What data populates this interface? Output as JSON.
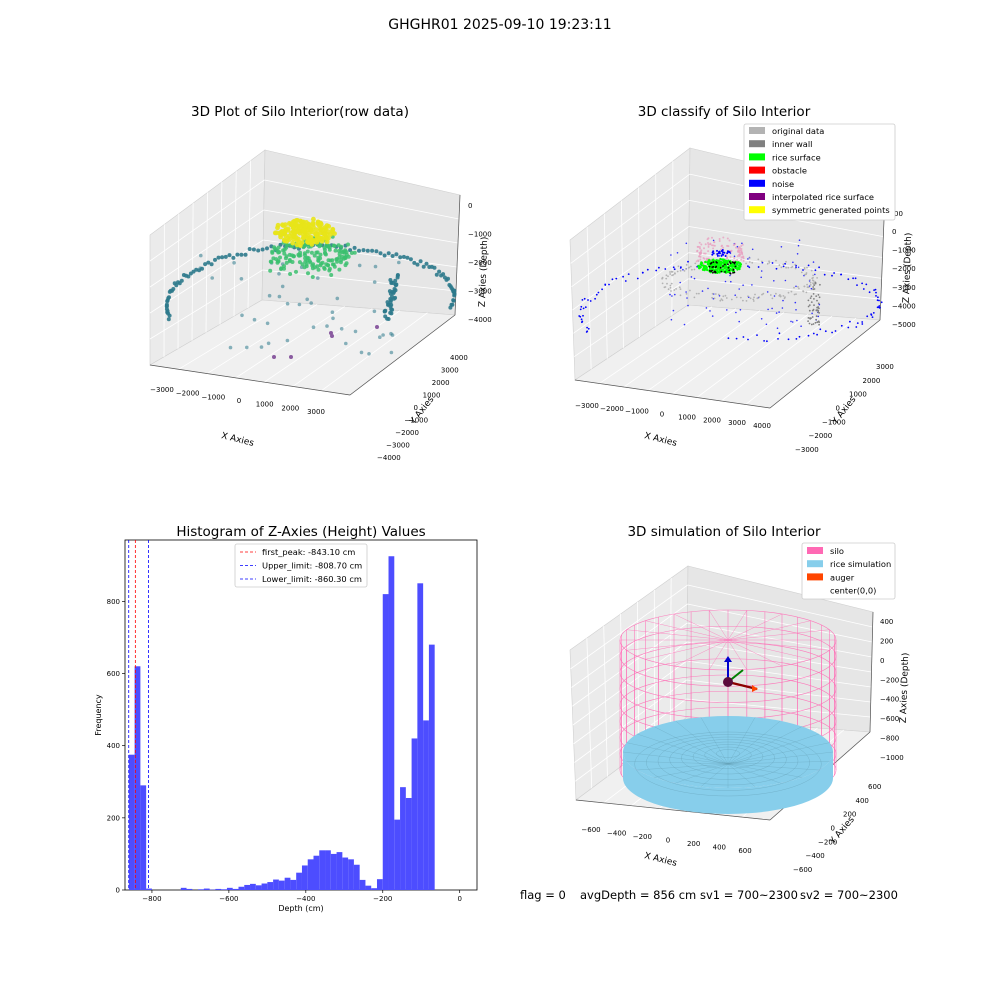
{
  "figure": {
    "title": "GHGHR01 2025-09-10 19:23:11",
    "status": {
      "flag": "flag = 0",
      "avg_depth": "avgDepth = 856 cm",
      "sv1": "sv1 = 700~2300",
      "sv2": "sv2 = 700~2300"
    }
  },
  "chart_data": [
    {
      "type": "scatter",
      "id": "raw3d",
      "title": "3D Plot of Silo Interior(row data)",
      "xlabel": "X Axies",
      "ylabel": "Y Axies",
      "zlabel": "Z Axies (Depth)",
      "x_ticks": [
        "−3000",
        "−2000",
        "−1000",
        "0",
        "1000",
        "2000",
        "3000"
      ],
      "y_ticks": [
        "−4000",
        "−3000",
        "−2000",
        "−1000",
        "0",
        "1000",
        "2000",
        "3000",
        "4000"
      ],
      "z_ticks": [
        "−4000",
        "−3000",
        "−2000",
        "−1000",
        "0"
      ],
      "xlim": [
        -3500,
        3500
      ],
      "ylim": [
        -4000,
        4000
      ],
      "zlim": [
        -4500,
        0
      ],
      "colors": {
        "top": "#e8e418",
        "mid": "#3bbf6e",
        "low": "#2d7a8c",
        "bottom": "#27527a",
        "odd": "#8a5ba0"
      }
    },
    {
      "type": "scatter",
      "id": "classify3d",
      "title": "3D classify of Silo Interior",
      "xlabel": "X Axies",
      "ylabel": "Y Axies",
      "zlabel": "Z Axies (Depth)",
      "x_ticks": [
        "−3000",
        "−2000",
        "−1000",
        "0",
        "1000",
        "2000",
        "3000",
        "4000"
      ],
      "y_ticks": [
        "−3000",
        "−2000",
        "−1000",
        "0",
        "1000",
        "2000",
        "3000"
      ],
      "z_ticks": [
        "−5000",
        "−4000",
        "−3000",
        "−2000",
        "−1000",
        "0",
        "1000"
      ],
      "z_tick_partial": "00",
      "legend_position": "upper-right",
      "legend": [
        {
          "label": "original data",
          "color": "#b3b3b3"
        },
        {
          "label": "inner wall",
          "color": "#808080"
        },
        {
          "label": "rice surface",
          "color": "#00ff00"
        },
        {
          "label": "obstacle",
          "color": "#ff0000"
        },
        {
          "label": "noise",
          "color": "#0000ff"
        },
        {
          "label": "interpolated rice surface",
          "color": "#800080"
        },
        {
          "label": "symmetric generated points",
          "color": "#ffff00"
        }
      ]
    },
    {
      "type": "bar",
      "id": "histogram",
      "title": "Histogram of Z-Axies (Height) Values",
      "xlabel": "Depth (cm)",
      "ylabel": "Frequency",
      "xlim": [
        -870,
        45
      ],
      "ylim": [
        0,
        970
      ],
      "x_ticks": [
        -800,
        -600,
        -400,
        -200,
        0
      ],
      "y_ticks": [
        0,
        200,
        400,
        600,
        800
      ],
      "bar_color": "#4d4dff",
      "bin_width": 15,
      "bins": [
        [
          -860,
          375
        ],
        [
          -845,
          620
        ],
        [
          -830,
          290
        ],
        [
          -815,
          4
        ],
        [
          -800,
          0
        ],
        [
          -785,
          0
        ],
        [
          -770,
          0
        ],
        [
          -755,
          0
        ],
        [
          -740,
          0
        ],
        [
          -725,
          6
        ],
        [
          -710,
          3
        ],
        [
          -695,
          0
        ],
        [
          -680,
          2
        ],
        [
          -665,
          4
        ],
        [
          -650,
          1
        ],
        [
          -635,
          3
        ],
        [
          -620,
          2
        ],
        [
          -605,
          6
        ],
        [
          -590,
          3
        ],
        [
          -575,
          9
        ],
        [
          -560,
          14
        ],
        [
          -545,
          17
        ],
        [
          -530,
          13
        ],
        [
          -515,
          18
        ],
        [
          -500,
          22
        ],
        [
          -485,
          29
        ],
        [
          -470,
          26
        ],
        [
          -455,
          34
        ],
        [
          -440,
          28
        ],
        [
          -425,
          48
        ],
        [
          -410,
          68
        ],
        [
          -395,
          85
        ],
        [
          -380,
          95
        ],
        [
          -365,
          110
        ],
        [
          -350,
          110
        ],
        [
          -335,
          100
        ],
        [
          -320,
          105
        ],
        [
          -305,
          90
        ],
        [
          -290,
          85
        ],
        [
          -275,
          70
        ],
        [
          -260,
          28
        ],
        [
          -245,
          12
        ],
        [
          -230,
          5
        ],
        [
          -215,
          30
        ],
        [
          -200,
          820
        ],
        [
          -185,
          925
        ],
        [
          -170,
          195
        ],
        [
          -155,
          285
        ],
        [
          -140,
          255
        ],
        [
          -125,
          420
        ],
        [
          -110,
          850
        ],
        [
          -95,
          470
        ],
        [
          -80,
          680
        ]
      ],
      "reference_lines": [
        {
          "label": "first_peak: -843.10 cm",
          "value": -843.1,
          "color": "#ff0000"
        },
        {
          "label": "Upper_limit: -808.70 cm",
          "value": -808.7,
          "color": "#0000ff"
        },
        {
          "label": "Lower_limit: -860.30 cm",
          "value": -860.3,
          "color": "#0000ff"
        }
      ]
    },
    {
      "type": "area",
      "id": "simulation3d",
      "title": "3D simulation of Silo Interior",
      "xlabel": "X Axies",
      "ylabel": "Y Axies",
      "zlabel": "Z Axies (Depth)",
      "x_ticks": [
        "−600",
        "−400",
        "−200",
        "0",
        "200",
        "400",
        "600"
      ],
      "y_ticks": [
        "−600",
        "−400",
        "−200",
        "0",
        "200",
        "400",
        "600"
      ],
      "z_ticks": [
        "−1000",
        "−800",
        "−600",
        "−400",
        "−200",
        "0",
        "200",
        "400"
      ],
      "legend_position": "upper-right",
      "legend": [
        {
          "label": "silo",
          "color": "#ff69b4"
        },
        {
          "label": "rice simulation",
          "color": "#87ceeb"
        },
        {
          "label": "auger",
          "color": "#ff4500"
        },
        {
          "label": "center(0,0)",
          "color": ""
        }
      ]
    }
  ]
}
